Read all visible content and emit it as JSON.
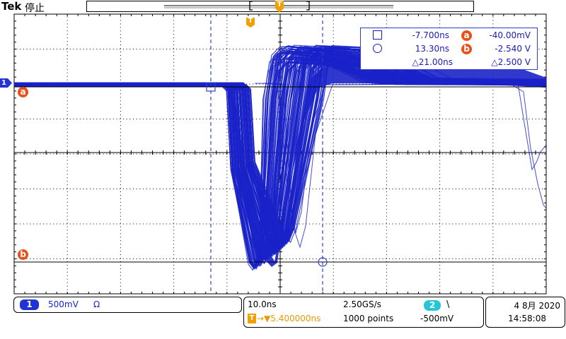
{
  "header": {
    "brand": "Tek",
    "run_state": "停止"
  },
  "markers": {
    "trigger_position": "T",
    "cursor_a": "a",
    "cursor_b": "b",
    "channel_marker": "1"
  },
  "cursor_readout": {
    "row1": {
      "time": "-7.700ns",
      "cursor": "a",
      "level": "-40.00mV"
    },
    "row2": {
      "time": "13.30ns",
      "cursor": "b",
      "level": "-2.540 V"
    },
    "row3": {
      "delta_time": "△21.00ns",
      "delta_level": "△2.500 V"
    }
  },
  "channel1": {
    "badge": "1",
    "scale": "500mV",
    "coupling_icon": "Ω"
  },
  "horizontal": {
    "time_per_div": "10.0ns",
    "sample_rate": "2.50GS/s",
    "trigger_symbol": "T",
    "trigger_delay": "→▼5.400000ns",
    "record_length": "1000 points"
  },
  "trigger": {
    "source_badge": "2",
    "slope_icon": "\\",
    "level": "-500mV"
  },
  "datetime": {
    "date": "4 8月 2020",
    "time": "14:58:08"
  },
  "colors": {
    "waveform": "#1a22c8",
    "graticule": "#000000",
    "cursor": "#3343d0",
    "trigger": "#f0a000",
    "badge_orange": "#e8501a",
    "ch2_cyan": "#26c6d6"
  }
}
